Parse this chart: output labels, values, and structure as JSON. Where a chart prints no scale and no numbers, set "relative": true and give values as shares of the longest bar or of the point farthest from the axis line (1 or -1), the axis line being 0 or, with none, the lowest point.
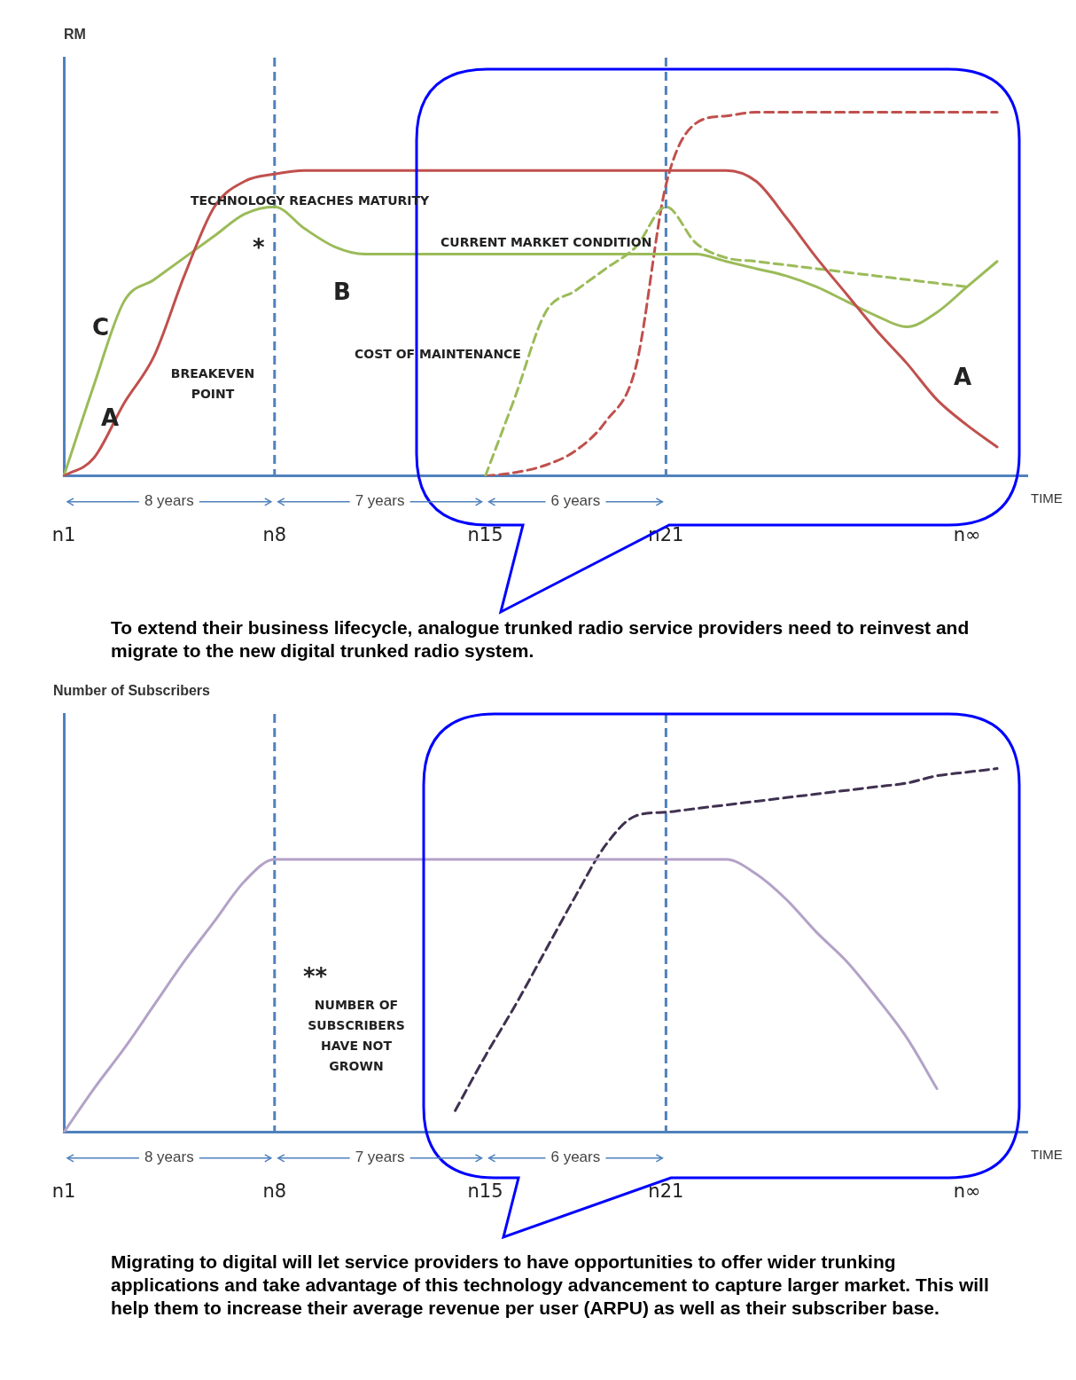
{
  "chart_data": [
    {
      "type": "line",
      "relative": true,
      "ylabel": "RM",
      "xlabel": "TIME",
      "categories": [
        "n1",
        null,
        null,
        null,
        null,
        null,
        null,
        "n8",
        null,
        null,
        null,
        null,
        null,
        null,
        "n15",
        null,
        null,
        null,
        null,
        null,
        "n21",
        null,
        null,
        null,
        null,
        null,
        null,
        null,
        null,
        null,
        "n∞",
        null,
        null
      ],
      "ref_lines": [
        {
          "axis": "x",
          "value": "n8",
          "color": "#4f81bd",
          "line_style": "dashed"
        },
        {
          "axis": "x",
          "value": "n21",
          "color": "#4f81bd",
          "line_style": "dashed"
        }
      ],
      "series": [
        {
          "color": "#c0504d",
          "line_style": "solid",
          "values": [
            0,
            0.05,
            0.2,
            0.33,
            0.55,
            0.74,
            0.81,
            0.83,
            0.84,
            0.84,
            0.84,
            0.84,
            0.84,
            0.84,
            0.84,
            0.84,
            0.84,
            0.84,
            0.84,
            0.84,
            0.84,
            0.84,
            0.84,
            0.81,
            0.71,
            0.6,
            0.5,
            0.4,
            0.31,
            0.21,
            0.14,
            0.08,
            null
          ]
        },
        {
          "color": "#9bbb59",
          "line_style": "solid",
          "values": [
            0,
            0.25,
            0.48,
            0.54,
            0.6,
            0.66,
            0.72,
            0.74,
            0.68,
            0.63,
            0.61,
            0.61,
            0.61,
            0.61,
            0.61,
            0.61,
            0.61,
            0.61,
            0.61,
            0.61,
            0.61,
            0.61,
            0.59,
            0.57,
            0.55,
            0.52,
            0.48,
            0.44,
            0.41,
            0.45,
            0.52,
            0.59,
            null
          ]
        },
        {
          "color": "#9bbb59",
          "line_style": "dashed",
          "values": [
            null,
            null,
            null,
            null,
            null,
            null,
            null,
            null,
            null,
            null,
            null,
            null,
            null,
            null,
            0,
            0.22,
            0.45,
            0.51,
            0.57,
            0.63,
            0.74,
            0.64,
            0.6,
            0.59,
            0.58,
            0.57,
            0.56,
            0.55,
            0.54,
            0.53,
            0.52,
            null,
            null
          ]
        },
        {
          "color": "#c0504d",
          "line_style": "dashed",
          "values": [
            null,
            null,
            null,
            null,
            null,
            null,
            null,
            null,
            null,
            null,
            null,
            null,
            null,
            null,
            0,
            0.01,
            0.03,
            0.07,
            0.15,
            0.3,
            0.8,
            0.97,
            0.99,
            1,
            1,
            1,
            1,
            1,
            1,
            1,
            1,
            1,
            null
          ]
        }
      ],
      "annotations": [
        "TECHNOLOGY REACHES MATURITY",
        "*",
        "CURRENT MARKET CONDITION",
        "B",
        "C",
        "A",
        "BREAKEVEN\nPOINT",
        "COST OF MAINTENANCE",
        "A",
        "8 years",
        "7 years",
        "6 years",
        "To extend their business lifecycle, analogue trunked radio service providers need to reinvest and migrate to the new digital trunked radio system."
      ]
    },
    {
      "type": "line",
      "relative": true,
      "ylabel": "Number of Subscribers",
      "xlabel": "TIME",
      "categories": [
        "n1",
        null,
        null,
        null,
        null,
        null,
        null,
        "n8",
        null,
        null,
        null,
        null,
        null,
        null,
        "n15",
        null,
        null,
        null,
        null,
        null,
        "n21",
        null,
        null,
        null,
        null,
        null,
        null,
        null,
        null,
        null,
        "n∞",
        null,
        null
      ],
      "ref_lines": [
        {
          "axis": "x",
          "value": "n8",
          "color": "#4f81bd",
          "line_style": "dashed"
        },
        {
          "axis": "x",
          "value": "n21",
          "color": "#4f81bd",
          "line_style": "dashed"
        }
      ],
      "series": [
        {
          "color": "#b3a2c7",
          "line_style": "solid",
          "values": [
            0,
            0.12,
            0.23,
            0.35,
            0.47,
            0.58,
            0.69,
            0.75,
            0.75,
            0.75,
            0.75,
            0.75,
            0.75,
            0.75,
            0.75,
            0.75,
            0.75,
            0.75,
            0.75,
            0.75,
            0.75,
            0.75,
            0.75,
            0.71,
            0.64,
            0.55,
            0.47,
            0.37,
            0.26,
            0.12,
            null,
            null,
            null
          ]
        },
        {
          "color": "#403151",
          "line_style": "dashed",
          "values": [
            null,
            null,
            null,
            null,
            null,
            null,
            null,
            null,
            null,
            null,
            null,
            null,
            null,
            0.06,
            0.21,
            0.35,
            0.5,
            0.65,
            0.79,
            0.87,
            0.88,
            0.89,
            0.9,
            0.91,
            0.92,
            0.93,
            0.94,
            0.95,
            0.96,
            0.98,
            0.99,
            1,
            null
          ]
        }
      ],
      "annotations": [
        "**",
        "NUMBER OF\nSUBSCRIBERS\nHAVE NOT\nGROWN",
        "8 years",
        "7 years",
        "6 years",
        "Migrating to digital will let service providers to have opportunities to offer wider trunking applications  and take advantage of this technology advancement to capture larger market. This will help them to  increase their average revenue per user (ARPU) as well as their subscriber base."
      ]
    }
  ]
}
